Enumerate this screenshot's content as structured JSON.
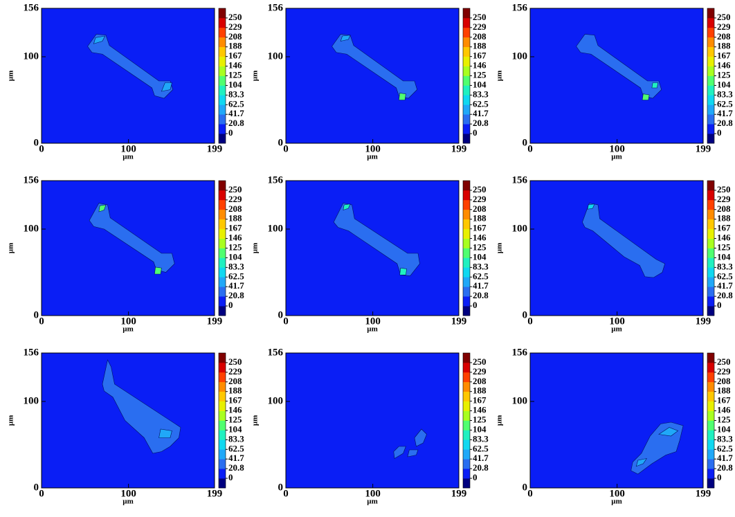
{
  "chart_data": [
    {
      "type": "contour",
      "xlabel": "µm",
      "ylabel": "µm",
      "xlim": [
        0,
        199
      ],
      "ylim": [
        0,
        156
      ],
      "xticks": [
        0,
        100,
        199
      ],
      "yticks": [
        0,
        100,
        156
      ],
      "background_value": 10,
      "levels": [
        0,
        20.8,
        41.7,
        62.5,
        83.3,
        104,
        125,
        146,
        167,
        188,
        208,
        229,
        250
      ],
      "colors": [
        "#000080",
        "#0a1ef5",
        "#2a6ef0",
        "#20a8f8",
        "#10d8f0",
        "#20f0c0",
        "#50ff70",
        "#a8ff20",
        "#e8f000",
        "#ffc800",
        "#ff8c00",
        "#ff4000",
        "#d80000",
        "#800000"
      ],
      "regions": [
        {
          "x": [
            53,
            63,
            74,
            78,
            135,
            148,
            151,
            141,
            130,
            127,
            70,
            58
          ],
          "y": [
            112,
            126,
            125,
            113,
            72,
            72,
            62,
            52,
            55,
            64,
            103,
            105
          ],
          "value": 30
        },
        {
          "x": [
            138,
            148,
            150,
            142
          ],
          "y": [
            60,
            62,
            70,
            70
          ],
          "value": 50
        },
        {
          "x": [
            60,
            70,
            73,
            62
          ],
          "y": [
            115,
            118,
            124,
            122
          ],
          "value": 50
        }
      ]
    },
    {
      "type": "contour",
      "xlabel": "µm",
      "ylabel": "µm",
      "xlim": [
        0,
        199
      ],
      "ylim": [
        0,
        156
      ],
      "xticks": [
        0,
        100,
        199
      ],
      "yticks": [
        0,
        100,
        156
      ],
      "background_value": 10,
      "levels": [
        0,
        20.8,
        41.7,
        62.5,
        83.3,
        104,
        125,
        146,
        167,
        188,
        208,
        229,
        250
      ],
      "colors": [
        "#000080",
        "#0a1ef5",
        "#2a6ef0",
        "#20a8f8",
        "#10d8f0",
        "#20f0c0",
        "#50ff70",
        "#a8ff20",
        "#e8f000",
        "#ffc800",
        "#ff8c00",
        "#ff4000",
        "#d80000",
        "#800000"
      ],
      "regions": [
        {
          "x": [
            53,
            63,
            74,
            78,
            135,
            148,
            151,
            141,
            130,
            127,
            70,
            58
          ],
          "y": [
            112,
            126,
            125,
            113,
            72,
            72,
            62,
            52,
            55,
            64,
            103,
            105
          ],
          "value": 30
        },
        {
          "x": [
            130,
            137,
            138,
            131
          ],
          "y": [
            50,
            50,
            57,
            58
          ],
          "value": 110
        },
        {
          "x": [
            63,
            72,
            74,
            65
          ],
          "y": [
            118,
            120,
            125,
            124
          ],
          "value": 60
        }
      ]
    },
    {
      "type": "contour",
      "xlabel": "µm",
      "ylabel": "µm",
      "xlim": [
        0,
        199
      ],
      "ylim": [
        0,
        156
      ],
      "xticks": [
        0,
        100,
        199
      ],
      "yticks": [
        0,
        100,
        156
      ],
      "background_value": 10,
      "levels": [
        0,
        20.8,
        41.7,
        62.5,
        83.3,
        104,
        125,
        146,
        167,
        188,
        208,
        229,
        250
      ],
      "colors": [
        "#000080",
        "#0a1ef5",
        "#2a6ef0",
        "#20a8f8",
        "#10d8f0",
        "#20f0c0",
        "#50ff70",
        "#a8ff20",
        "#e8f000",
        "#ffc800",
        "#ff8c00",
        "#ff4000",
        "#d80000",
        "#800000"
      ],
      "regions": [
        {
          "x": [
            53,
            63,
            74,
            78,
            135,
            148,
            151,
            141,
            130,
            127,
            70,
            58
          ],
          "y": [
            112,
            126,
            125,
            113,
            72,
            72,
            62,
            52,
            55,
            64,
            103,
            105
          ],
          "value": 30
        },
        {
          "x": [
            129,
            136,
            137,
            130
          ],
          "y": [
            50,
            50,
            56,
            57
          ],
          "value": 110
        },
        {
          "x": [
            140,
            146,
            147,
            141
          ],
          "y": [
            64,
            64,
            70,
            70
          ],
          "value": 100
        }
      ]
    },
    {
      "type": "contour",
      "xlabel": "µm",
      "ylabel": "µm",
      "xlim": [
        0,
        199
      ],
      "ylim": [
        0,
        156
      ],
      "xticks": [
        0,
        100,
        199
      ],
      "yticks": [
        0,
        100,
        156
      ],
      "background_value": 10,
      "levels": [
        0,
        20.8,
        41.7,
        62.5,
        83.3,
        104,
        125,
        146,
        167,
        188,
        208,
        229,
        250
      ],
      "colors": [
        "#000080",
        "#0a1ef5",
        "#2a6ef0",
        "#20a8f8",
        "#10d8f0",
        "#20f0c0",
        "#50ff70",
        "#a8ff20",
        "#e8f000",
        "#ffc800",
        "#ff8c00",
        "#ff4000",
        "#d80000",
        "#800000"
      ],
      "regions": [
        {
          "x": [
            55,
            66,
            76,
            79,
            138,
            150,
            153,
            143,
            132,
            129,
            72,
            60
          ],
          "y": [
            110,
            130,
            128,
            113,
            72,
            72,
            60,
            50,
            53,
            62,
            100,
            103
          ],
          "value": 30
        },
        {
          "x": [
            130,
            137,
            138,
            131
          ],
          "y": [
            48,
            48,
            55,
            56
          ],
          "value": 110
        },
        {
          "x": [
            66,
            72,
            74,
            67
          ],
          "y": [
            120,
            122,
            128,
            127
          ],
          "value": 110
        }
      ]
    },
    {
      "type": "contour",
      "xlabel": "µm",
      "ylabel": "µm",
      "xlim": [
        0,
        199
      ],
      "ylim": [
        0,
        156
      ],
      "xticks": [
        0,
        100,
        199
      ],
      "yticks": [
        0,
        100,
        156
      ],
      "background_value": 10,
      "levels": [
        0,
        20.8,
        41.7,
        62.5,
        83.3,
        104,
        125,
        146,
        167,
        188,
        208,
        229,
        250
      ],
      "colors": [
        "#000080",
        "#0a1ef5",
        "#2a6ef0",
        "#20a8f8",
        "#10d8f0",
        "#20f0c0",
        "#50ff70",
        "#a8ff20",
        "#e8f000",
        "#ffc800",
        "#ff8c00",
        "#ff4000",
        "#d80000",
        "#800000"
      ],
      "regions": [
        {
          "x": [
            55,
            66,
            76,
            79,
            140,
            152,
            154,
            143,
            132,
            128,
            72,
            60
          ],
          "y": [
            108,
            130,
            128,
            112,
            72,
            72,
            60,
            46,
            47,
            60,
            98,
            102
          ],
          "value": 30
        },
        {
          "x": [
            131,
            138,
            139,
            132
          ],
          "y": [
            47,
            47,
            54,
            55
          ],
          "value": 100
        },
        {
          "x": [
            66,
            72,
            74,
            67
          ],
          "y": [
            122,
            124,
            129,
            128
          ],
          "value": 100
        }
      ]
    },
    {
      "type": "contour",
      "xlabel": "µm",
      "ylabel": "µm",
      "xlim": [
        0,
        199
      ],
      "ylim": [
        0,
        156
      ],
      "xticks": [
        0,
        100,
        199
      ],
      "yticks": [
        0,
        100,
        156
      ],
      "background_value": 10,
      "levels": [
        0,
        20.8,
        41.7,
        62.5,
        83.3,
        104,
        125,
        146,
        167,
        188,
        208,
        229,
        250
      ],
      "colors": [
        "#000080",
        "#0a1ef5",
        "#2a6ef0",
        "#20a8f8",
        "#10d8f0",
        "#20f0c0",
        "#50ff70",
        "#a8ff20",
        "#e8f000",
        "#ffc800",
        "#ff8c00",
        "#ff4000",
        "#d80000",
        "#800000"
      ],
      "regions": [
        {
          "x": [
            60,
            68,
            78,
            80,
            145,
            155,
            152,
            142,
            132,
            126,
            108,
            72,
            63
          ],
          "y": [
            108,
            130,
            128,
            112,
            65,
            60,
            50,
            44,
            45,
            58,
            68,
            98,
            102
          ],
          "value": 30
        },
        {
          "x": [
            66,
            72,
            74,
            67
          ],
          "y": [
            123,
            124,
            129,
            128
          ],
          "value": 80
        }
      ]
    },
    {
      "type": "contour",
      "xlabel": "µm",
      "ylabel": "µm",
      "xlim": [
        0,
        199
      ],
      "ylim": [
        0,
        156
      ],
      "xticks": [
        0,
        100,
        199
      ],
      "yticks": [
        0,
        100,
        156
      ],
      "background_value": 10,
      "levels": [
        0,
        20.8,
        41.7,
        62.5,
        83.3,
        104,
        125,
        146,
        167,
        188,
        208,
        229,
        250
      ],
      "colors": [
        "#000080",
        "#0a1ef5",
        "#2a6ef0",
        "#20a8f8",
        "#10d8f0",
        "#20f0c0",
        "#50ff70",
        "#a8ff20",
        "#e8f000",
        "#ffc800",
        "#ff8c00",
        "#ff4000",
        "#d80000",
        "#800000"
      ],
      "regions": [
        {
          "x": [
            70,
            76,
            80,
            84,
            160,
            158,
            148,
            138,
            128,
            118,
            96,
            82,
            72
          ],
          "y": [
            120,
            148,
            140,
            120,
            70,
            58,
            48,
            42,
            40,
            58,
            78,
            105,
            112
          ],
          "value": 30
        },
        {
          "x": [
            135,
            148,
            150,
            137
          ],
          "y": [
            58,
            58,
            66,
            68
          ],
          "value": 50
        }
      ]
    },
    {
      "type": "contour",
      "xlabel": "µm",
      "ylabel": "µm",
      "xlim": [
        0,
        199
      ],
      "ylim": [
        0,
        156
      ],
      "xticks": [
        0,
        100,
        199
      ],
      "yticks": [
        0,
        100,
        156
      ],
      "background_value": 10,
      "levels": [
        0,
        20.8,
        41.7,
        62.5,
        83.3,
        104,
        125,
        146,
        167,
        188,
        208,
        229,
        250
      ],
      "colors": [
        "#000080",
        "#0a1ef5",
        "#2a6ef0",
        "#20a8f8",
        "#10d8f0",
        "#20f0c0",
        "#50ff70",
        "#a8ff20",
        "#e8f000",
        "#ffc800",
        "#ff8c00",
        "#ff4000",
        "#d80000",
        "#800000"
      ],
      "regions": [
        {
          "x": [
            148,
            156,
            162,
            158,
            150
          ],
          "y": [
            58,
            68,
            62,
            52,
            48
          ],
          "value": 30
        },
        {
          "x": [
            125,
            135,
            138,
            130,
            124
          ],
          "y": [
            34,
            40,
            48,
            48,
            42
          ],
          "value": 30
        },
        {
          "x": [
            140,
            150,
            152,
            142
          ],
          "y": [
            36,
            38,
            44,
            44
          ],
          "value": 30
        }
      ]
    },
    {
      "type": "contour",
      "xlabel": "µm",
      "ylabel": "µm",
      "xlim": [
        0,
        199
      ],
      "ylim": [
        0,
        156
      ],
      "xticks": [
        0,
        100,
        199
      ],
      "yticks": [
        0,
        100,
        156
      ],
      "background_value": 10,
      "levels": [
        0,
        20.8,
        41.7,
        62.5,
        83.3,
        104,
        125,
        146,
        167,
        188,
        208,
        229,
        250
      ],
      "colors": [
        "#000080",
        "#0a1ef5",
        "#2a6ef0",
        "#20a8f8",
        "#10d8f0",
        "#20f0c0",
        "#50ff70",
        "#a8ff20",
        "#e8f000",
        "#ffc800",
        "#ff8c00",
        "#ff4000",
        "#d80000",
        "#800000"
      ],
      "regions": [
        {
          "x": [
            118,
            128,
            138,
            150,
            162,
            176,
            172,
            168,
            156,
            140,
            124,
            116
          ],
          "y": [
            30,
            40,
            60,
            74,
            76,
            72,
            55,
            42,
            38,
            28,
            16,
            20
          ],
          "value": 30
        },
        {
          "x": [
            148,
            160,
            170,
            162
          ],
          "y": [
            62,
            70,
            66,
            60
          ],
          "value": 50
        },
        {
          "x": [
            122,
            130,
            134,
            124
          ],
          "y": [
            25,
            28,
            34,
            32
          ],
          "value": 50
        }
      ]
    }
  ]
}
